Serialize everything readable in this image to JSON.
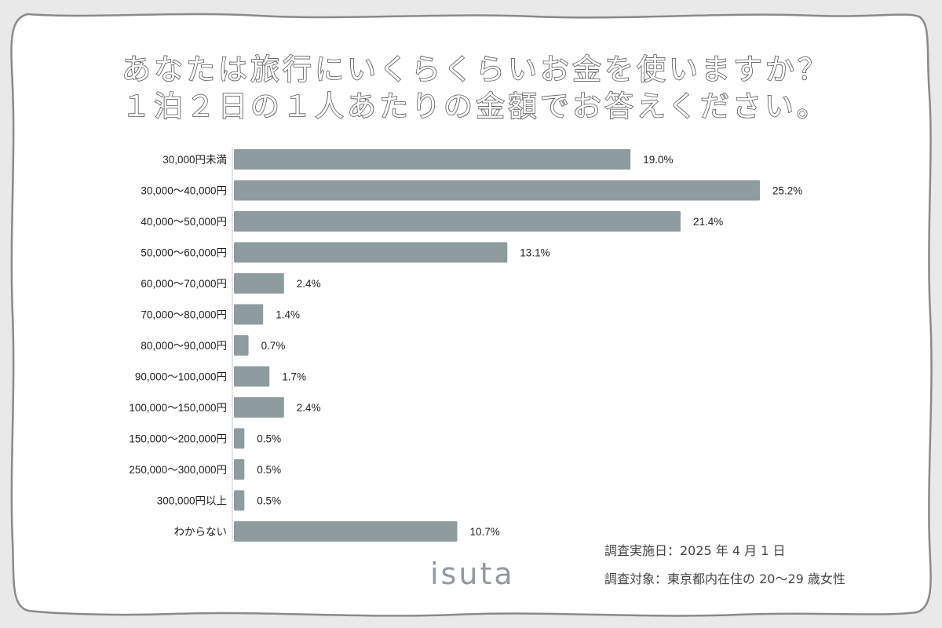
{
  "title": {
    "line1": "あなたは旅行にいくらくらいお金を使いますか？",
    "line2": "１泊２日の１人あたりの金額でお答えください。"
  },
  "chart_data": {
    "type": "bar",
    "orientation": "horizontal",
    "categories": [
      "30,000円未満",
      "30,000〜40,000円",
      "40,000〜50,000円",
      "50,000〜60,000円",
      "60,000〜70,000円",
      "70,000〜80,000円",
      "80,000〜90,000円",
      "90,000〜100,000円",
      "100,000〜150,000円",
      "150,000〜200,000円",
      "250,000〜300,000円",
      "300,000円以上",
      "わからない"
    ],
    "values": [
      19.0,
      25.2,
      21.4,
      13.1,
      2.4,
      1.4,
      0.7,
      1.7,
      2.4,
      0.5,
      0.5,
      0.5,
      10.7
    ],
    "value_labels": [
      "19.0%",
      "25.2%",
      "21.4%",
      "13.1%",
      "2.4%",
      "1.4%",
      "0.7%",
      "1.7%",
      "2.4%",
      "0.5%",
      "0.5%",
      "0.5%",
      "10.7%"
    ],
    "unit": "%",
    "xlim": [
      0,
      25.2
    ],
    "grid": false,
    "legend": "none",
    "bar_color": "#8e9ca0"
  },
  "notes": {
    "date": "調査実施日：2025 年 4 月 1 日",
    "target": "調査対象：東京都内在住の 20〜29 歳女性"
  },
  "logo": {
    "text": "isuta"
  },
  "colors": {
    "background": "#e9e9e9",
    "panel": "#ffffff",
    "frame_stroke": "#8a8a8a",
    "bar": "#8e9ca0",
    "text": "#222222"
  }
}
